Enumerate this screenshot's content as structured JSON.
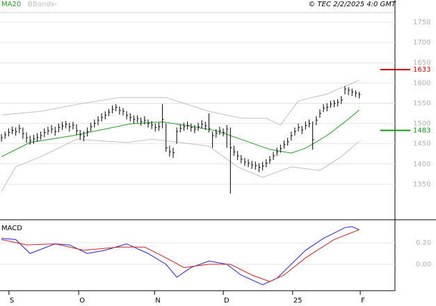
{
  "chart_data": [
    {
      "type": "ohlc",
      "source": "© TEC 2/2/2025 4:0 GMT",
      "color": "#000000",
      "grid": true,
      "x": [
        0,
        1,
        2,
        3,
        4,
        5,
        6,
        7,
        8,
        9,
        10,
        11,
        12,
        13,
        14,
        15,
        16,
        17,
        18,
        19,
        20,
        21,
        22,
        23,
        24,
        25,
        26,
        27,
        28,
        29,
        30,
        31,
        32,
        33,
        34,
        35,
        36,
        37,
        38,
        39,
        40,
        41,
        42,
        43,
        44,
        45,
        46,
        47,
        48,
        49,
        50,
        51,
        52,
        53,
        54,
        55,
        56,
        57,
        58,
        59,
        60,
        61,
        62,
        63,
        64,
        65,
        66,
        67,
        68,
        69,
        70,
        71,
        72,
        73,
        74,
        75,
        76,
        77,
        78,
        79,
        80,
        81,
        82,
        83,
        84,
        85,
        86,
        87,
        88,
        89,
        90,
        91,
        92,
        93,
        94,
        95,
        96,
        97,
        98,
        99,
        100
      ],
      "high": [
        1474,
        1480,
        1488,
        1492,
        1490,
        1497,
        1490,
        1478,
        1470,
        1472,
        1476,
        1480,
        1488,
        1492,
        1496,
        1492,
        1500,
        1504,
        1506,
        1502,
        1504,
        1498,
        1484,
        1480,
        1490,
        1502,
        1510,
        1518,
        1525,
        1530,
        1536,
        1545,
        1548,
        1542,
        1538,
        1530,
        1525,
        1520,
        1520,
        1515,
        1518,
        1510,
        1506,
        1500,
        1502,
        1548,
        1500,
        1445,
        1440,
        1490,
        1498,
        1502,
        1505,
        1500,
        1496,
        1502,
        1508,
        1504,
        1525,
        1480,
        1486,
        1492,
        1488,
        1496,
        1490,
        1445,
        1432,
        1422,
        1415,
        1412,
        1408,
        1406,
        1402,
        1405,
        1412,
        1420,
        1430,
        1440,
        1448,
        1458,
        1465,
        1480,
        1490,
        1500,
        1494,
        1505,
        1510,
        1505,
        1518,
        1535,
        1548,
        1550,
        1556,
        1558,
        1560,
        1568,
        1592,
        1590,
        1586,
        1582,
        1578
      ],
      "low": [
        1455,
        1462,
        1468,
        1474,
        1470,
        1476,
        1462,
        1452,
        1448,
        1450,
        1455,
        1460,
        1466,
        1472,
        1476,
        1470,
        1478,
        1484,
        1488,
        1480,
        1485,
        1472,
        1460,
        1456,
        1468,
        1480,
        1490,
        1496,
        1505,
        1510,
        1518,
        1525,
        1530,
        1522,
        1520,
        1510,
        1505,
        1500,
        1502,
        1495,
        1498,
        1490,
        1486,
        1480,
        1482,
        1488,
        1430,
        1418,
        1415,
        1450,
        1478,
        1482,
        1485,
        1480,
        1476,
        1482,
        1488,
        1484,
        1478,
        1440,
        1465,
        1472,
        1468,
        1440,
        1327,
        1420,
        1410,
        1402,
        1395,
        1392,
        1388,
        1386,
        1380,
        1384,
        1392,
        1400,
        1410,
        1420,
        1428,
        1438,
        1445,
        1458,
        1470,
        1480,
        1474,
        1485,
        1490,
        1435,
        1496,
        1514,
        1528,
        1530,
        1538,
        1540,
        1542,
        1548,
        1572,
        1570,
        1568,
        1565,
        1562
      ],
      "close": [
        1465,
        1472,
        1478,
        1483,
        1480,
        1488,
        1475,
        1465,
        1458,
        1462,
        1466,
        1470,
        1478,
        1482,
        1486,
        1480,
        1490,
        1494,
        1498,
        1492,
        1496,
        1482,
        1472,
        1468,
        1480,
        1492,
        1500,
        1508,
        1515,
        1520,
        1528,
        1535,
        1540,
        1532,
        1530,
        1520,
        1515,
        1510,
        1512,
        1505,
        1508,
        1500,
        1496,
        1490,
        1492,
        1510,
        1440,
        1430,
        1428,
        1480,
        1488,
        1492,
        1495,
        1490,
        1486,
        1492,
        1498,
        1494,
        1488,
        1470,
        1476,
        1482,
        1478,
        1486,
        1440,
        1430,
        1420,
        1412,
        1405,
        1402,
        1398,
        1396,
        1392,
        1395,
        1402,
        1410,
        1420,
        1430,
        1438,
        1448,
        1455,
        1470,
        1480,
        1490,
        1484,
        1495,
        1500,
        1460,
        1508,
        1525,
        1538,
        1540,
        1548,
        1550,
        1552,
        1558,
        1585,
        1582,
        1578,
        1575,
        1572
      ],
      "ma": {
        "name": "MA20",
        "color": "#1e9e1e",
        "x": [
          0,
          8,
          20,
          36,
          45,
          51,
          60,
          67,
          75,
          81,
          85,
          91,
          96,
          100
        ],
        "values": [
          1418,
          1453,
          1470,
          1499,
          1504,
          1496,
          1482,
          1461,
          1436,
          1427,
          1439,
          1470,
          1504,
          1533
        ]
      },
      "bands": {
        "name": "BBands",
        "color": "#c0c0c0",
        "upper": {
          "x": [
            0,
            11,
            23,
            33,
            46,
            58,
            67,
            74,
            78,
            83,
            91,
            100
          ],
          "values": [
            1521,
            1530,
            1550,
            1564,
            1564,
            1530,
            1513,
            1513,
            1496,
            1556,
            1573,
            1607
          ]
        },
        "lower": {
          "x": [
            0,
            4,
            11,
            21,
            35,
            42,
            50,
            58,
            66,
            73,
            81,
            89,
            95,
            100
          ],
          "values": [
            1332,
            1393,
            1418,
            1461,
            1453,
            1461,
            1453,
            1444,
            1393,
            1367,
            1393,
            1384,
            1418,
            1456
          ]
        }
      },
      "markers": [
        {
          "value": 1633,
          "color": "#cc0000"
        },
        {
          "value": 1483,
          "color": "#119911"
        }
      ],
      "xlim": [
        -0.4,
        110
      ],
      "ylim": [
        1264,
        1774
      ],
      "yticks": [
        1350,
        1400,
        1450,
        1500,
        1550,
        1600,
        1650,
        1700,
        1750
      ]
    },
    {
      "type": "line",
      "title": "MACD",
      "grid": true,
      "series": [
        {
          "color": "#2222cc",
          "x": [
            0,
            4,
            8,
            15,
            19,
            24,
            29,
            35,
            41,
            46,
            49,
            53,
            58,
            63,
            67,
            73,
            77,
            81,
            85,
            90,
            96,
            98,
            100
          ],
          "values": [
            0.24,
            0.23,
            0.1,
            0.19,
            0.18,
            0.1,
            0.13,
            0.19,
            0.1,
            0,
            -0.12,
            -0.03,
            0.03,
            0,
            -0.1,
            -0.19,
            -0.13,
            0,
            0.13,
            0.24,
            0.34,
            0.35,
            0.32
          ]
        },
        {
          "color": "#cc2222",
          "x": [
            0,
            7,
            15,
            23,
            33,
            40,
            46,
            51,
            58,
            64,
            70,
            75,
            79,
            85,
            93,
            100
          ],
          "values": [
            0.23,
            0.18,
            0.19,
            0.13,
            0.16,
            0.16,
            0.06,
            -0.03,
            0,
            0,
            -0.1,
            -0.16,
            -0.1,
            0.06,
            0.23,
            0.32
          ]
        }
      ],
      "xlim": [
        -0.4,
        110
      ],
      "ylim": [
        -0.245,
        0.4
      ],
      "yticks": [
        {
          "value": 0,
          "label": "0.00"
        },
        {
          "value": 0.2,
          "label": "0.20"
        }
      ],
      "xticks": [
        {
          "value": 2.1,
          "label": "S"
        },
        {
          "value": 21.6,
          "label": "O"
        },
        {
          "value": 42.8,
          "label": "N"
        },
        {
          "value": 62,
          "label": "D"
        },
        {
          "value": 81.4,
          "label": "25"
        },
        {
          "value": 100.3,
          "label": "F"
        }
      ]
    }
  ]
}
